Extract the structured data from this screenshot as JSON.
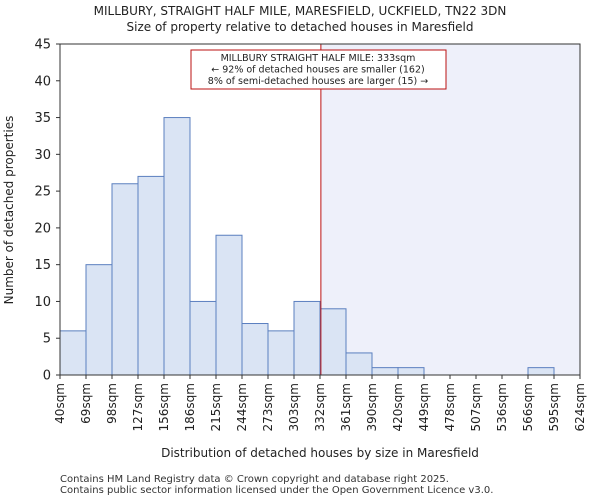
{
  "chart_data": {
    "type": "bar",
    "title": "MILLBURY, STRAIGHT HALF MILE, MARESFIELD, UCKFIELD, TN22 3DN",
    "subtitle": "Size of property relative to detached houses in Maresfield",
    "xlabel": "Distribution of detached houses by size in Maresfield",
    "ylabel": "Number of detached properties",
    "ylim": [
      0,
      45
    ],
    "yticks": [
      "0",
      "5",
      "10",
      "15",
      "20",
      "25",
      "30",
      "35",
      "40",
      "45"
    ],
    "bin_edges": [
      40,
      69,
      98,
      127,
      156,
      186,
      215,
      244,
      273,
      303,
      332,
      361,
      390,
      420,
      449,
      478,
      507,
      536,
      566,
      595,
      624
    ],
    "xtick_labels": [
      "40sqm",
      "69sqm",
      "98sqm",
      "127sqm",
      "156sqm",
      "186sqm",
      "215sqm",
      "244sqm",
      "273sqm",
      "303sqm",
      "332sqm",
      "361sqm",
      "390sqm",
      "420sqm",
      "449sqm",
      "478sqm",
      "507sqm",
      "536sqm",
      "566sqm",
      "595sqm",
      "624sqm"
    ],
    "values": [
      6,
      15,
      26,
      27,
      35,
      10,
      19,
      7,
      6,
      10,
      9,
      3,
      1,
      1,
      0,
      0,
      0,
      0,
      1,
      0
    ],
    "marker_value": 333,
    "annotation": [
      "MILLBURY STRAIGHT HALF MILE: 333sqm",
      "← 92% of detached houses are smaller (162)",
      "8% of semi-detached houses are larger (15) →"
    ],
    "colors": {
      "bar_fill": "#dae4f4",
      "bar_edge": "#5b7fbf",
      "marker": "#bb1111",
      "shade": "#eef0fa"
    }
  },
  "footer": {
    "line1": "Contains HM Land Registry data © Crown copyright and database right 2025.",
    "line2": "Contains public sector information licensed under the Open Government Licence v3.0."
  }
}
